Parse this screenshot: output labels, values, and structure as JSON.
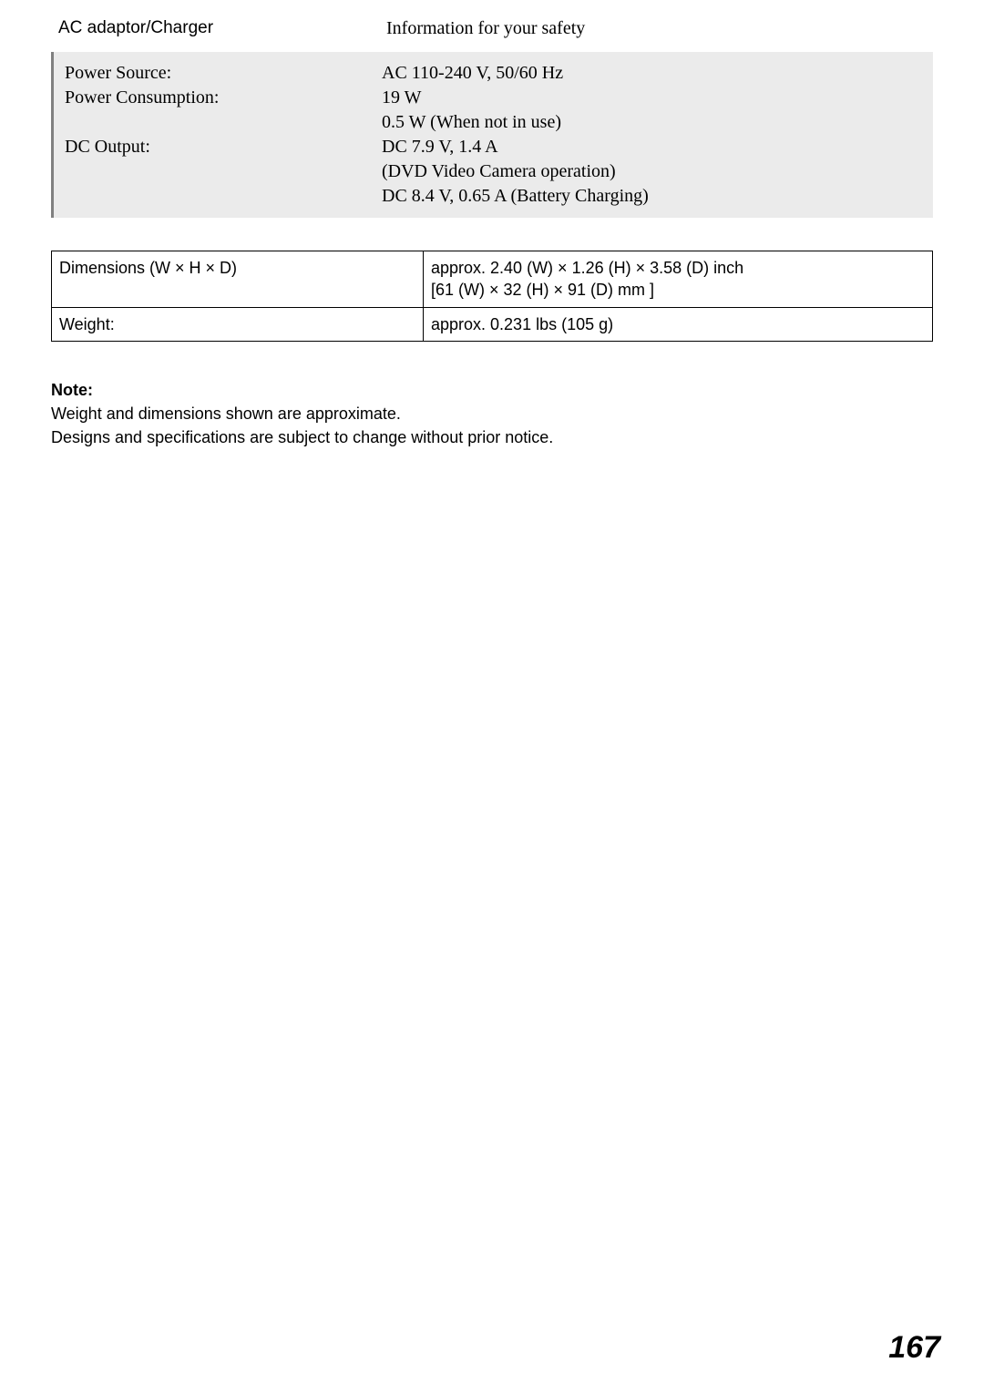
{
  "header": {
    "left": "AC adaptor/Charger",
    "right": "Information for your safety"
  },
  "gray_rows": [
    {
      "label": "Power Source:",
      "value": "AC 110-240 V, 50/60 Hz"
    },
    {
      "label": "Power Consumption:",
      "value": "19 W"
    },
    {
      "label": "",
      "value": "0.5 W (When not in use)"
    },
    {
      "label": "DC Output:",
      "value": "DC 7.9 V, 1.4 A"
    },
    {
      "label": "",
      "value": "(DVD Video Camera operation)"
    },
    {
      "label": "",
      "value": "DC 8.4 V, 0.65 A (Battery Charging)"
    }
  ],
  "spec_table": {
    "rows": [
      {
        "label": "Dimensions (W × H × D)",
        "value": "approx. 2.40 (W) × 1.26 (H) × 3.58 (D) inch\n[61 (W) × 32 (H) × 91 (D) mm ]"
      },
      {
        "label": "Weight:",
        "value": "approx. 0.231 lbs (105 g)"
      }
    ]
  },
  "note": {
    "label": "Note:",
    "line1": "Weight and dimensions shown are approximate.",
    "line2": "Designs and specifications are subject to change without prior notice."
  },
  "page_number": "167"
}
